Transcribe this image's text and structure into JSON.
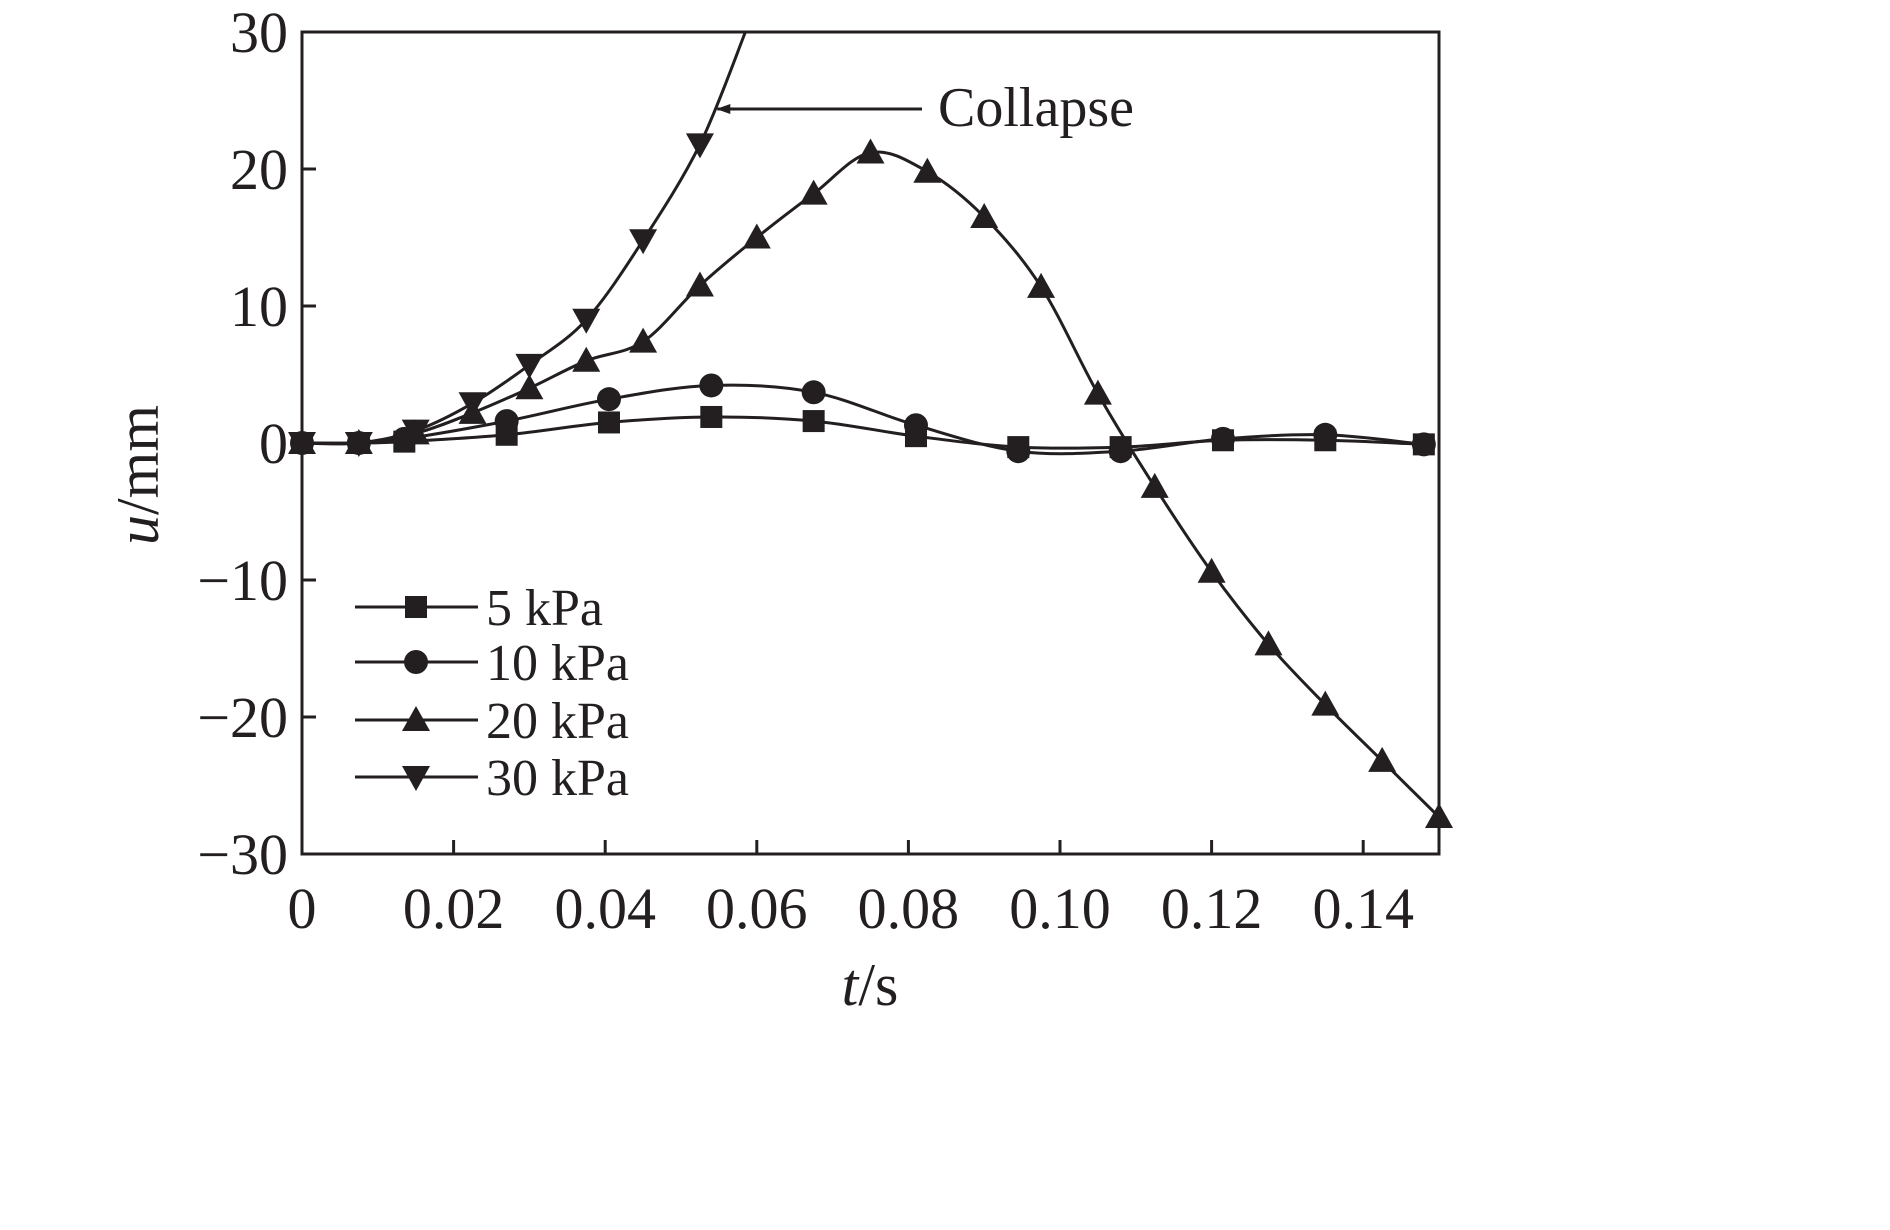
{
  "chart_data": {
    "type": "line",
    "xlabel": {
      "var": "t",
      "unit": "/s"
    },
    "ylabel": {
      "var": "u",
      "unit": "/mm"
    },
    "xlim": [
      0,
      0.15
    ],
    "ylim": [
      -30,
      30
    ],
    "xticks": [
      {
        "value": 0,
        "label": "0"
      },
      {
        "value": 0.02,
        "label": "0.02"
      },
      {
        "value": 0.04,
        "label": "0.04"
      },
      {
        "value": 0.06,
        "label": "0.06"
      },
      {
        "value": 0.08,
        "label": "0.08"
      },
      {
        "value": 0.1,
        "label": "0.10"
      },
      {
        "value": 0.12,
        "label": "0.12"
      },
      {
        "value": 0.14,
        "label": "0.14"
      }
    ],
    "yticks": [
      {
        "value": 30,
        "label": "30"
      },
      {
        "value": 20,
        "label": "20"
      },
      {
        "value": 10,
        "label": "10"
      },
      {
        "value": 0,
        "label": "0"
      },
      {
        "value": -10,
        "label": "−10"
      },
      {
        "value": -20,
        "label": "−20"
      },
      {
        "value": -30,
        "label": "−30"
      }
    ],
    "grid": false,
    "legend_position": "bottom-left",
    "annotation": {
      "text": "Collapse",
      "points_to": [
        0.054,
        24
      ]
    },
    "series": [
      {
        "name": "5 kPa",
        "marker": "square",
        "x": [
          0,
          0.0075,
          0.0135,
          0.027,
          0.0405,
          0.054,
          0.0675,
          0.081,
          0.0945,
          0.108,
          0.1215,
          0.135,
          0.148
        ],
        "y": [
          0,
          0,
          0.1,
          0.6,
          1.5,
          1.9,
          1.6,
          0.5,
          -0.3,
          -0.3,
          0.2,
          0.2,
          -0.1
        ],
        "markers_x": [
          0,
          0.0075,
          0.0135,
          0.027,
          0.0405,
          0.054,
          0.0675,
          0.081,
          0.0945,
          0.108,
          0.1215,
          0.135,
          0.148
        ]
      },
      {
        "name": "10 kPa",
        "marker": "circle",
        "x": [
          0,
          0.0075,
          0.0135,
          0.027,
          0.0405,
          0.054,
          0.0675,
          0.081,
          0.0945,
          0.108,
          0.1215,
          0.135,
          0.148
        ],
        "y": [
          0,
          0,
          0.3,
          1.6,
          3.2,
          4.2,
          3.7,
          1.3,
          -0.6,
          -0.6,
          0.3,
          0.6,
          -0.1
        ],
        "markers_x": [
          0,
          0.0075,
          0.0135,
          0.027,
          0.0405,
          0.054,
          0.0675,
          0.081,
          0.0945,
          0.108,
          0.1215,
          0.135,
          0.148
        ]
      },
      {
        "name": "20 kPa",
        "marker": "triangle-up",
        "x": [
          0,
          0.0075,
          0.015,
          0.0225,
          0.03,
          0.0375,
          0.045,
          0.0525,
          0.06,
          0.0675,
          0.075,
          0.0825,
          0.09,
          0.0975,
          0.105,
          0.1125,
          0.12,
          0.1275,
          0.135,
          0.1425,
          0.15
        ],
        "y": [
          0,
          0,
          0.7,
          2.2,
          4.0,
          6.0,
          7.4,
          11.5,
          15.0,
          18.2,
          21.2,
          19.8,
          16.5,
          11.4,
          3.6,
          -3.2,
          -9.4,
          -14.7,
          -19.1,
          -23.2,
          -27.3
        ],
        "markers_x": [
          0,
          0.0075,
          0.015,
          0.0225,
          0.03,
          0.0375,
          0.045,
          0.0525,
          0.06,
          0.0675,
          0.075,
          0.0825,
          0.09,
          0.0975,
          0.105,
          0.1125,
          0.12,
          0.1275,
          0.135,
          0.1425,
          0.15
        ]
      },
      {
        "name": "30 kPa",
        "marker": "triangle-down",
        "x": [
          0,
          0.0075,
          0.015,
          0.0225,
          0.03,
          0.0375,
          0.045,
          0.0525,
          0.0585
        ],
        "y": [
          0,
          0,
          0.9,
          2.9,
          5.7,
          9.0,
          14.8,
          21.8,
          30.0
        ],
        "markers_x": [
          0,
          0.0075,
          0.015,
          0.0225,
          0.03,
          0.0375,
          0.045,
          0.0525
        ]
      }
    ]
  }
}
